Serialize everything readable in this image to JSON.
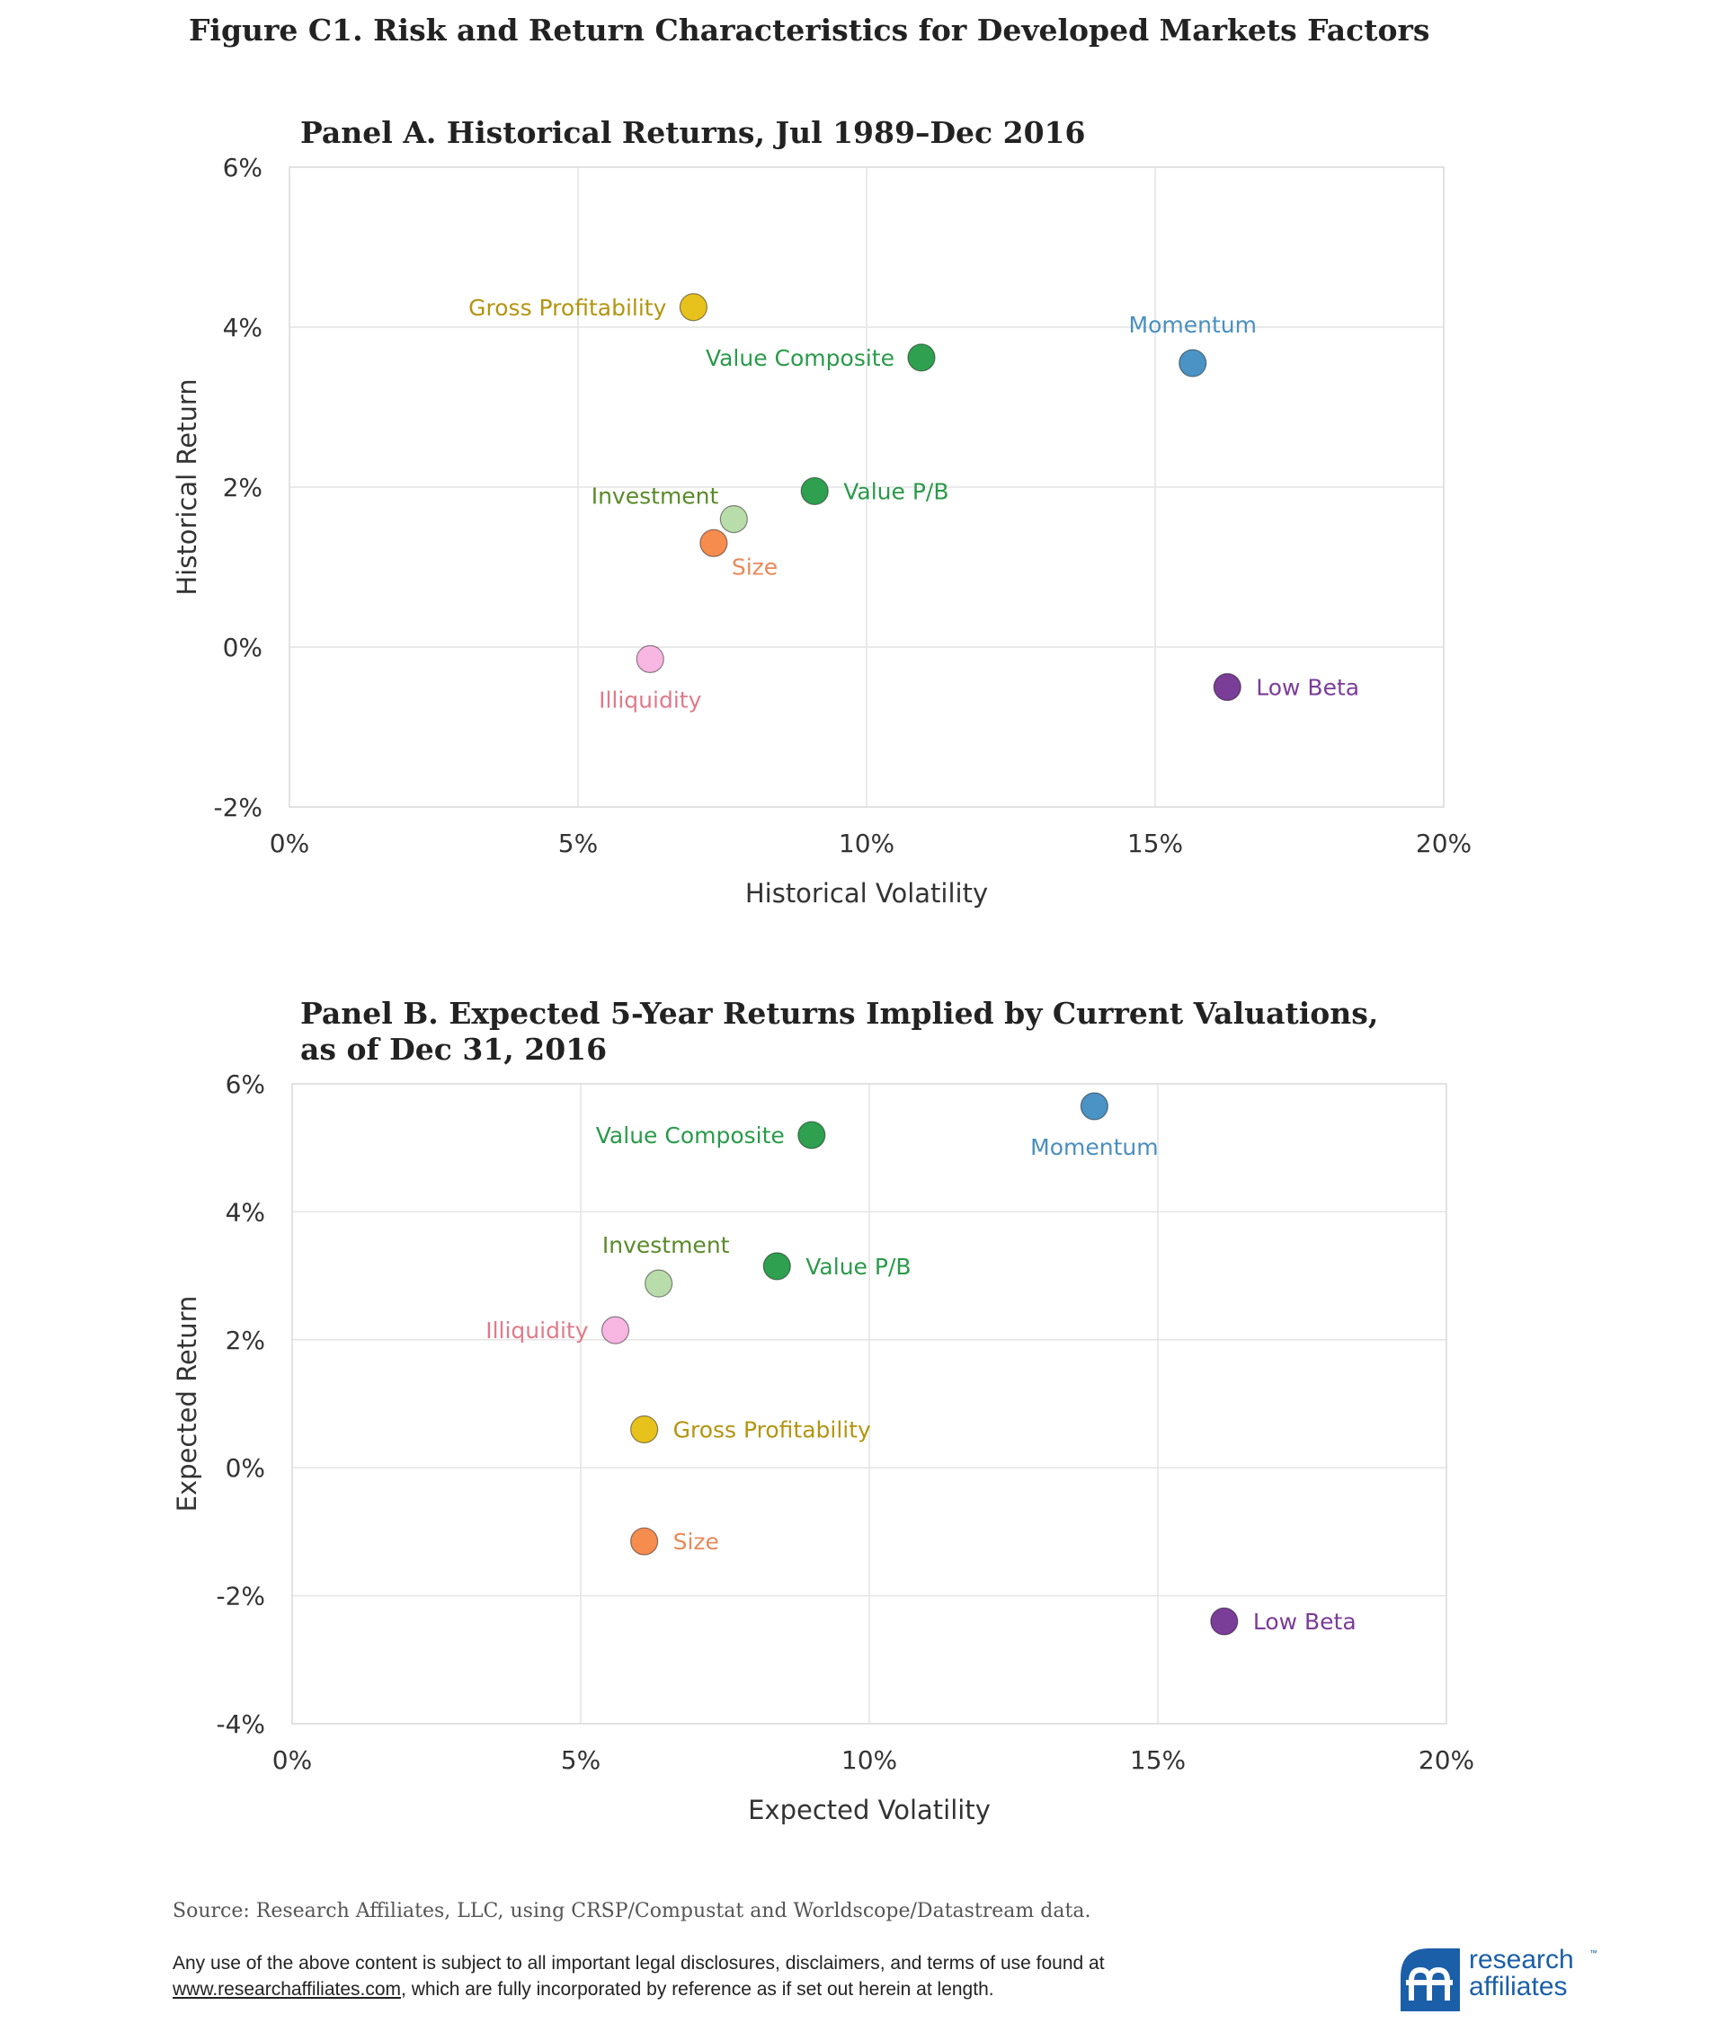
{
  "figure_title": "Figure C1. Risk and Return Characteristics for Developed Markets Factors",
  "chart_data": [
    {
      "type": "scatter",
      "title": "Panel A. Historical Returns, Jul 1989–Dec 2016",
      "title_lines": [
        "Panel A. Historical Returns, Jul 1989–Dec 2016"
      ],
      "xlabel": "Historical Volatility",
      "ylabel": "Historical Return",
      "xlim": [
        0,
        20
      ],
      "ylim": [
        -2,
        6
      ],
      "xticks": [
        0,
        5,
        10,
        15,
        20
      ],
      "xtick_labels": [
        "0%",
        "5%",
        "10%",
        "15%",
        "20%"
      ],
      "yticks": [
        -2,
        0,
        2,
        4,
        6
      ],
      "ytick_labels": [
        "-2%",
        "0%",
        "2%",
        "4%",
        "6%"
      ],
      "grid": true,
      "points": [
        {
          "label": "Gross Profitability",
          "x": 7.0,
          "y": 4.25,
          "color": "#e8c21c",
          "text_color": "#b39510",
          "label_pos": "left"
        },
        {
          "label": "Value Composite",
          "x": 10.95,
          "y": 3.62,
          "color": "#2ea04f",
          "text_color": "#2a9a4a",
          "label_pos": "left"
        },
        {
          "label": "Momentum",
          "x": 15.65,
          "y": 3.55,
          "color": "#4a93c4",
          "text_color": "#4a8fc0",
          "label_pos": "above"
        },
        {
          "label": "Value P/B",
          "x": 9.1,
          "y": 1.95,
          "color": "#2ea04f",
          "text_color": "#2a9a4a",
          "label_pos": "right"
        },
        {
          "label": "Investment",
          "x": 7.7,
          "y": 1.6,
          "color": "#b9dcab",
          "text_color": "#5a8a2a",
          "label_pos": "upper-left"
        },
        {
          "label": "Size",
          "x": 7.35,
          "y": 1.3,
          "color": "#f68c4e",
          "text_color": "#e88a5a",
          "label_pos": "lower-right"
        },
        {
          "label": "Illiquidity",
          "x": 6.25,
          "y": -0.15,
          "color": "#f8b6e3",
          "text_color": "#e07a8a",
          "label_pos": "below"
        },
        {
          "label": "Low Beta",
          "x": 16.25,
          "y": -0.5,
          "color": "#7a3d98",
          "text_color": "#7a3d98",
          "label_pos": "right"
        }
      ]
    },
    {
      "type": "scatter",
      "title": "Panel B. Expected 5-Year Returns Implied by Current Valuations, as of Dec 31, 2016",
      "title_lines": [
        "Panel B. Expected 5-Year Returns Implied by Current Valuations,",
        "as of Dec 31, 2016"
      ],
      "xlabel": "Expected Volatility",
      "ylabel": "Expected Return",
      "xlim": [
        0,
        20
      ],
      "ylim": [
        -4,
        6
      ],
      "xticks": [
        0,
        5,
        10,
        15,
        20
      ],
      "xtick_labels": [
        "0%",
        "5%",
        "10%",
        "15%",
        "20%"
      ],
      "yticks": [
        -4,
        -2,
        0,
        2,
        4,
        6
      ],
      "ytick_labels": [
        "-4%",
        "-2%",
        "0%",
        "2%",
        "4%",
        "6%"
      ],
      "grid": true,
      "points": [
        {
          "label": "Momentum",
          "x": 13.9,
          "y": 5.65,
          "color": "#4a93c4",
          "text_color": "#4a8fc0",
          "label_pos": "below"
        },
        {
          "label": "Value Composite",
          "x": 9.0,
          "y": 5.2,
          "color": "#2ea04f",
          "text_color": "#2a9a4a",
          "label_pos": "left"
        },
        {
          "label": "Value P/B",
          "x": 8.4,
          "y": 3.15,
          "color": "#2ea04f",
          "text_color": "#2a9a4a",
          "label_pos": "right"
        },
        {
          "label": "Investment",
          "x": 6.35,
          "y": 2.88,
          "color": "#b9dcab",
          "text_color": "#5a8a2a",
          "label_pos": "above-left"
        },
        {
          "label": "Illiquidity",
          "x": 5.6,
          "y": 2.15,
          "color": "#f8b6e3",
          "text_color": "#e07a8a",
          "label_pos": "left"
        },
        {
          "label": "Gross Profitability",
          "x": 6.1,
          "y": 0.6,
          "color": "#e8c21c",
          "text_color": "#b39510",
          "label_pos": "right"
        },
        {
          "label": "Size",
          "x": 6.1,
          "y": -1.15,
          "color": "#f68c4e",
          "text_color": "#e88a5a",
          "label_pos": "right"
        },
        {
          "label": "Low Beta",
          "x": 16.15,
          "y": -2.4,
          "color": "#7a3d98",
          "text_color": "#7a3d98",
          "label_pos": "right"
        }
      ]
    }
  ],
  "source": "Source: Research Affiliates, LLC, using CRSP/Compustat and Worldscope/Datastream data.",
  "disclaimer": {
    "line1": "Any use of the above content is subject to all important legal disclosures, disclaimers, and terms of use found at",
    "link": "www.researchaffiliates.com",
    "line2_rest": ", which are fully incorporated by reference as if set out herein at length."
  },
  "logo": {
    "line1": "research",
    "line2": "affiliates",
    "tm": "™",
    "color": "#1b5fa8"
  }
}
